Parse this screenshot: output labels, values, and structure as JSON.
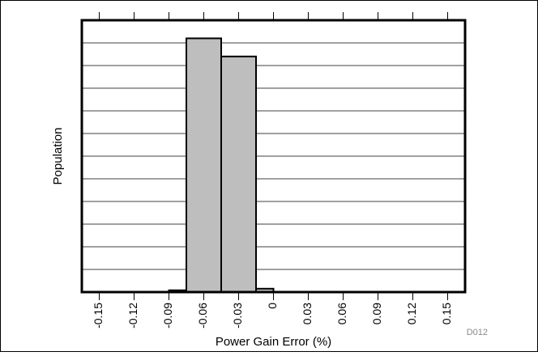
{
  "chart_data": {
    "type": "bar",
    "categories": [
      "-0.15",
      "-0.12",
      "-0.09",
      "-0.06",
      "-0.03",
      "0",
      "0.03",
      "0.06",
      "0.09",
      "0.12",
      "0.15"
    ],
    "bins": [
      {
        "start": -0.09,
        "end": -0.075,
        "value": 0.8
      },
      {
        "start": -0.075,
        "end": -0.045,
        "value": 112
      },
      {
        "start": -0.045,
        "end": -0.015,
        "value": 104
      },
      {
        "start": -0.015,
        "end": 0.0,
        "value": 1.5
      }
    ],
    "xlabel": "Power Gain Error (%)",
    "ylabel": "Population",
    "xlim": [
      -0.165,
      0.165
    ],
    "ylim": [
      0,
      120
    ],
    "y_gridlines": 12,
    "grid": true,
    "legend": "none",
    "bar_color": "#bebebe",
    "edge_color": "#000000"
  },
  "figure_code": "D012"
}
